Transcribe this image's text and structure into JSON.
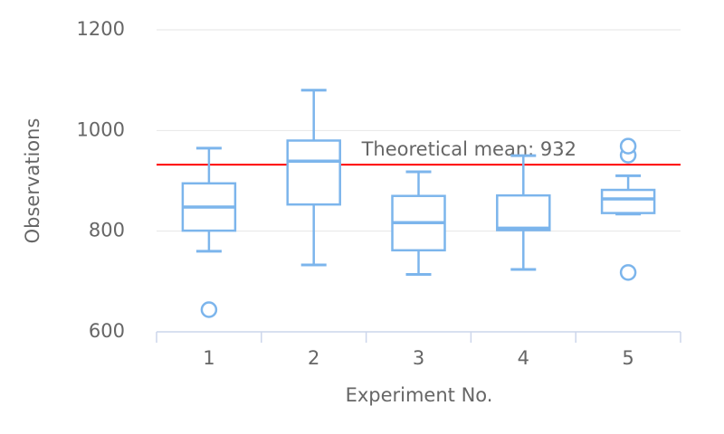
{
  "chart_data": {
    "type": "boxplot",
    "x_label": "Experiment No.",
    "y_label": "Observations",
    "categories": [
      "1",
      "2",
      "3",
      "4",
      "5"
    ],
    "boxes": [
      {
        "low": 760,
        "q1": 801,
        "median": 848,
        "q3": 895,
        "high": 965
      },
      {
        "low": 733,
        "q1": 853,
        "median": 939,
        "q3": 980,
        "high": 1080
      },
      {
        "low": 714,
        "q1": 762,
        "median": 817,
        "q3": 870,
        "high": 918
      },
      {
        "low": 724,
        "q1": 802,
        "median": 806,
        "q3": 871,
        "high": 950
      },
      {
        "low": 834,
        "q1": 836,
        "median": 864,
        "q3": 882,
        "high": 910
      }
    ],
    "outliers": [
      {
        "category": "1",
        "value": 644
      },
      {
        "category": "5",
        "value": 718
      },
      {
        "category": "5",
        "value": 951
      },
      {
        "category": "5",
        "value": 969
      }
    ],
    "color": "#7cb5ec",
    "plot_line": {
      "value": 932,
      "color": "#ff0000",
      "label": "Theoretical mean: 932"
    },
    "ylim": [
      600,
      1200
    ],
    "yticks": [
      600,
      800,
      1000,
      1200
    ],
    "grid": true
  }
}
